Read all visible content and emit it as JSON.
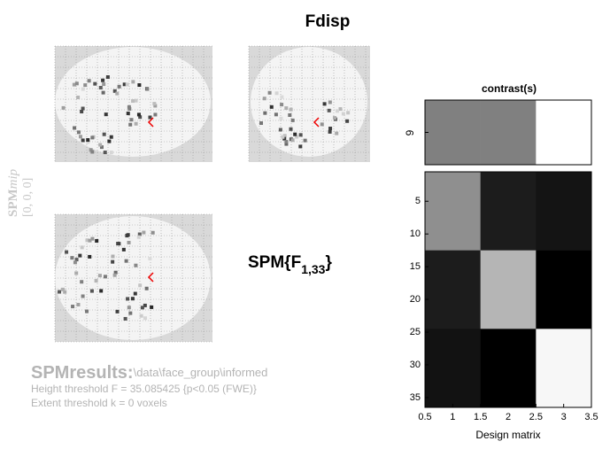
{
  "header": {
    "title": "Fdisp"
  },
  "mip": {
    "label": "SPM",
    "label_suffix": "mip",
    "coords": "[0, 0, 0]"
  },
  "statistic": {
    "base": "SPM{F",
    "subscript": "1,33",
    "close": "}"
  },
  "results": {
    "heading": "SPMresults:",
    "path": "\\data\\face_group\\informed",
    "height_threshold": "Height threshold F = 35.085425  {p<0.05 (FWE)}",
    "extent_threshold": "Extent threshold k = 0 voxels"
  },
  "contrast": {
    "title": "contrast(s)",
    "ytick_label": "9",
    "gray": [
      0.5,
      0.5,
      1.0
    ]
  },
  "design_matrix": {
    "xlabel": "Design matrix",
    "xlim": [
      0.5,
      3.5
    ],
    "ylim": [
      0.5,
      36.5
    ],
    "xticks": [
      0.5,
      1,
      1.5,
      2,
      2.5,
      3,
      3.5
    ],
    "yticks": [
      5,
      10,
      15,
      20,
      25,
      30,
      35
    ],
    "block_edges": [
      0.5,
      12.5,
      24.5,
      36.5
    ],
    "gray": [
      [
        0.56,
        0.11,
        0.08
      ],
      [
        0.11,
        0.71,
        0.0
      ],
      [
        0.07,
        0.0,
        0.97
      ]
    ]
  }
}
